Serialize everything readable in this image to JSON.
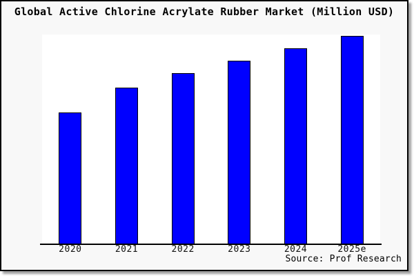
{
  "header": {
    "title": "Global Active Chlorine Acrylate Rubber Market (Million USD)"
  },
  "footer": {
    "source_credit": "Source: Prof Research"
  },
  "colors": {
    "bar_fill": "#0000ff",
    "bar_edge": "#000000",
    "frame_border": "#000000",
    "frame_background": "#f8f8f8",
    "plot_background": "#ffffff"
  },
  "chart_data": {
    "type": "bar",
    "title": "Global Active Chlorine Acrylate Rubber Market (Million USD)",
    "categories": [
      "2020",
      "2021",
      "2022",
      "2023",
      "2024",
      "2025e"
    ],
    "values": [
      63,
      75,
      82,
      88,
      94,
      100
    ],
    "series_note": "No numeric y-axis or data labels are shown; values are relative bar heights with 2025e = 100",
    "xlabel": "",
    "ylabel": "",
    "ylim": [
      0,
      100
    ],
    "grid": false,
    "legend": "none",
    "annotations": [
      "Source: Prof Research"
    ]
  }
}
